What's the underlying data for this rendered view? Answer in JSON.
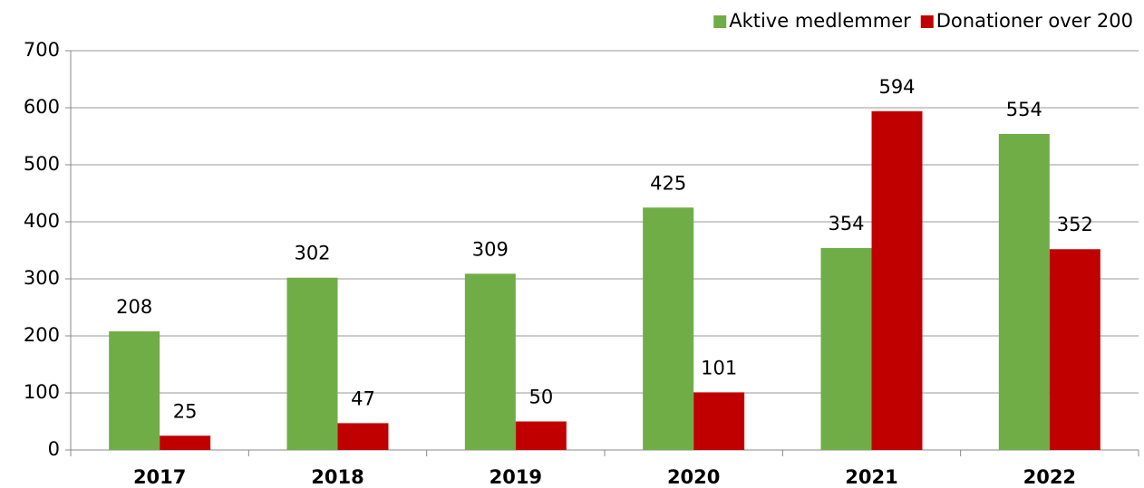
{
  "chart_data": {
    "type": "bar",
    "categories": [
      "2017",
      "2018",
      "2019",
      "2020",
      "2021",
      "2022"
    ],
    "series": [
      {
        "name": "Aktive medlemmer",
        "color": "#70ad47",
        "values": [
          208,
          302,
          309,
          425,
          354,
          554
        ]
      },
      {
        "name": "Donationer over 200",
        "color": "#c00000",
        "values": [
          25,
          47,
          50,
          101,
          594,
          352
        ]
      }
    ],
    "ylim": [
      0,
      700
    ],
    "yticks": [
      0,
      100,
      200,
      300,
      400,
      500,
      600,
      700
    ],
    "grid": true,
    "legend": "top-right"
  }
}
